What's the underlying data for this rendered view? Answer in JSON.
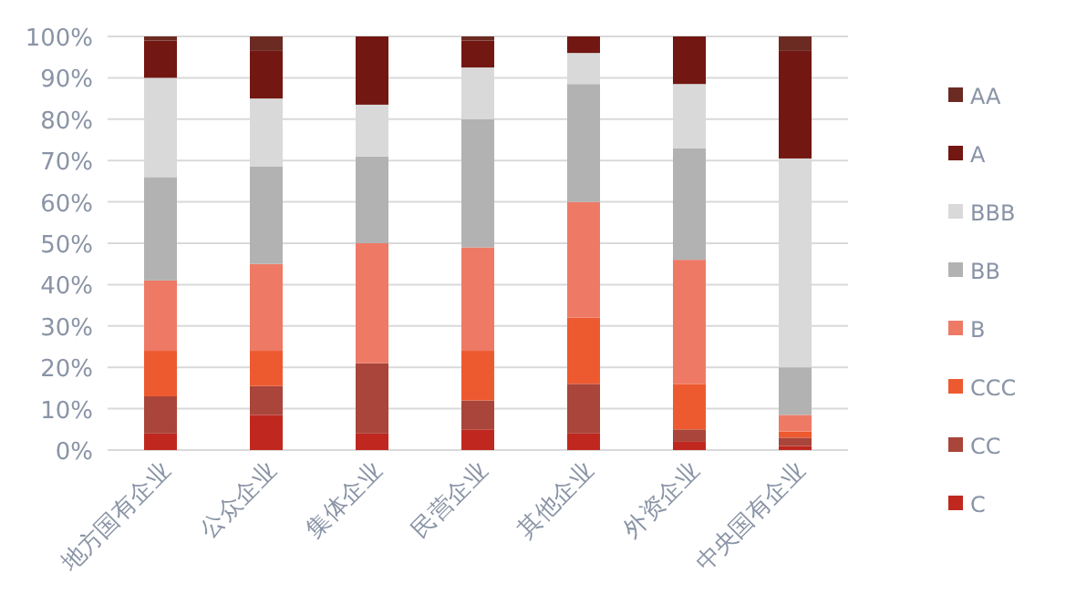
{
  "chart_data": {
    "type": "bar",
    "stacked": true,
    "grid": "y",
    "legend": "right",
    "categories": [
      "地方国有企业",
      "公众企业",
      "集体企业",
      "民营企业",
      "其他企业",
      "外资企业",
      "中央国有企业"
    ],
    "ylim": [
      0,
      100
    ],
    "yticks": [
      {
        "value": 0,
        "label": "0%"
      },
      {
        "value": 10,
        "label": "10%"
      },
      {
        "value": 20,
        "label": "20%"
      },
      {
        "value": 30,
        "label": "30%"
      },
      {
        "value": 40,
        "label": "40%"
      },
      {
        "value": 50,
        "label": "50%"
      },
      {
        "value": 60,
        "label": "60%"
      },
      {
        "value": 70,
        "label": "70%"
      },
      {
        "value": 80,
        "label": "80%"
      },
      {
        "value": 90,
        "label": "90%"
      },
      {
        "value": 100,
        "label": "100%"
      }
    ],
    "series": [
      {
        "name": "C",
        "color": "#c0281f",
        "values": [
          4,
          8.5,
          4,
          5,
          4,
          2,
          1
        ]
      },
      {
        "name": "CC",
        "color": "#a9453a",
        "values": [
          9,
          7,
          17,
          7,
          12,
          3,
          2
        ]
      },
      {
        "name": "CCC",
        "color": "#ee5a30",
        "values": [
          11,
          8.5,
          0,
          12,
          16,
          11,
          1.5
        ]
      },
      {
        "name": "B",
        "color": "#ee7a66",
        "values": [
          17,
          21,
          29,
          25,
          28,
          30,
          4
        ]
      },
      {
        "name": "BB",
        "color": "#b2b2b2",
        "values": [
          25,
          23.5,
          21,
          31,
          28.5,
          27,
          11.5
        ]
      },
      {
        "name": "BBB",
        "color": "#d9d9d9",
        "values": [
          24,
          16.5,
          12.5,
          12.5,
          7.5,
          15.5,
          50.5
        ]
      },
      {
        "name": "A",
        "color": "#731712",
        "values": [
          9,
          11.5,
          16.5,
          6.5,
          4,
          11.5,
          26
        ]
      },
      {
        "name": "AA",
        "color": "#6b2a22",
        "values": [
          1,
          3.5,
          0,
          1,
          0,
          0,
          3.5
        ]
      }
    ]
  }
}
